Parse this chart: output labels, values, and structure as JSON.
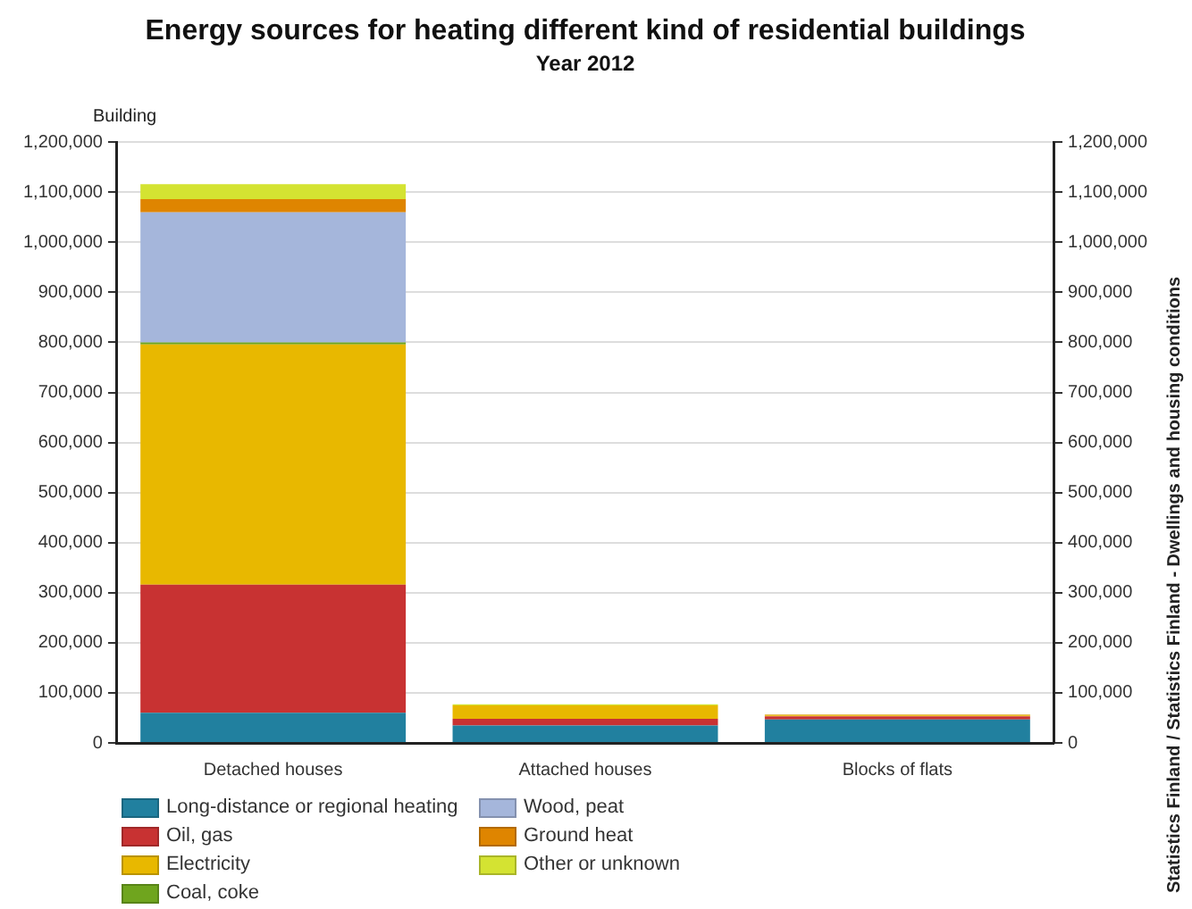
{
  "chart_data": {
    "type": "bar",
    "title": "Energy sources for heating different kind of residential buildings",
    "subtitle": "Year 2012",
    "ylabel": "Building",
    "categories": [
      "Detached houses",
      "Attached houses",
      "Blocks of flats"
    ],
    "stacked": true,
    "series": [
      {
        "name": "Long-distance or regional heating",
        "color": "#21809f",
        "values": [
          60000,
          35000,
          47000
        ]
      },
      {
        "name": "Oil, gas",
        "color": "#c83232",
        "values": [
          256000,
          13000,
          6000
        ]
      },
      {
        "name": "Electricity",
        "color": "#e8b800",
        "values": [
          480000,
          27000,
          2000
        ]
      },
      {
        "name": "Coal, coke",
        "color": "#6fa51e",
        "values": [
          4000,
          0,
          0
        ]
      },
      {
        "name": "Wood, peat",
        "color": "#a5b6db",
        "values": [
          260000,
          0,
          0
        ]
      },
      {
        "name": "Ground heat",
        "color": "#df8500",
        "values": [
          26000,
          0,
          1000
        ]
      },
      {
        "name": "Other or unknown",
        "color": "#d4e332",
        "values": [
          30000,
          2000,
          1000
        ]
      }
    ],
    "ylim": [
      0,
      1200000
    ],
    "yticks": [
      0,
      {
        "value": 100000,
        "label": "100,000"
      },
      {
        "value": 200000,
        "label": "200,000"
      },
      {
        "value": 300000,
        "label": "300,000"
      },
      {
        "value": 400000,
        "label": "400,000"
      },
      {
        "value": 500000,
        "label": "500,000"
      },
      {
        "value": 600000,
        "label": "600,000"
      },
      {
        "value": 700000,
        "label": "700,000"
      },
      {
        "value": 800000,
        "label": "800,000"
      },
      {
        "value": 900000,
        "label": "900,000"
      },
      {
        "value": 1000000,
        "label": "1,000,000"
      },
      {
        "value": 1100000,
        "label": "1,100,000"
      },
      {
        "value": 1200000,
        "label": "1,200,000"
      }
    ],
    "y2lim": [
      0,
      1200000
    ],
    "y2ticks": [
      0,
      {
        "value": 100000,
        "label": "100,000"
      },
      {
        "value": 200000,
        "label": "200,000"
      },
      {
        "value": 300000,
        "label": "300,000"
      },
      {
        "value": 400000,
        "label": "400,000"
      },
      {
        "value": 500000,
        "label": "500,000"
      },
      {
        "value": 600000,
        "label": "600,000"
      },
      {
        "value": 700000,
        "label": "700,000"
      },
      {
        "value": 800000,
        "label": "800,000"
      },
      {
        "value": 900000,
        "label": "900,000"
      },
      {
        "value": 1000000,
        "label": "1,000,000"
      },
      {
        "value": 1100000,
        "label": "1,100,000"
      },
      {
        "value": 1200000,
        "label": "1,200,000"
      }
    ],
    "grid": "y",
    "legend": "bottom",
    "annotations": [
      "Statistics Finland / Statistics Finland - Dwellings and housing conditions"
    ]
  }
}
